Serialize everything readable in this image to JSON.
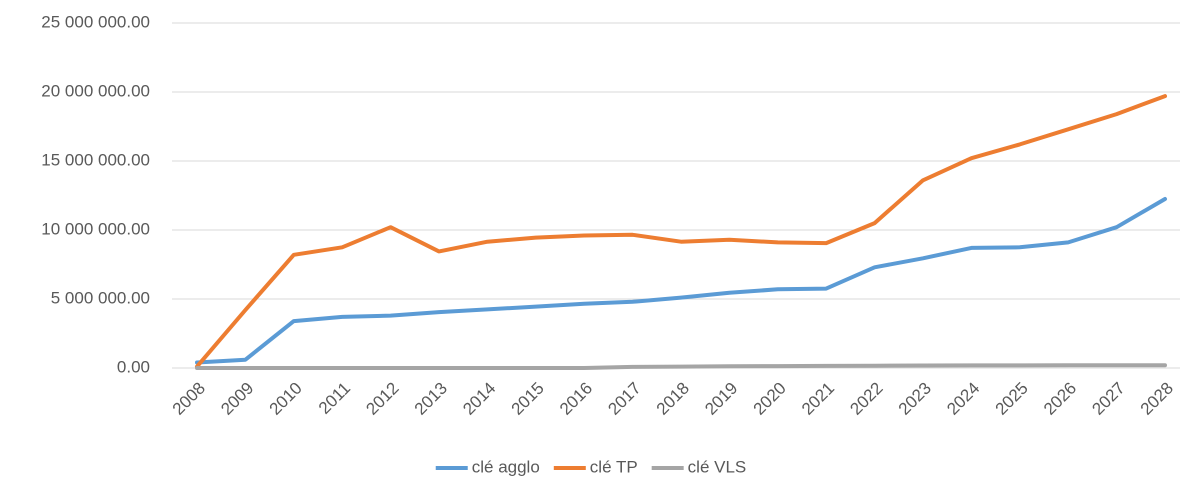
{
  "chart_data": {
    "type": "line",
    "categories": [
      "2008",
      "2009",
      "2010",
      "2011",
      "2012",
      "2013",
      "2014",
      "2015",
      "2016",
      "2017",
      "2018",
      "2019",
      "2020",
      "2021",
      "2022",
      "2023",
      "2024",
      "2025",
      "2026",
      "2027",
      "2028"
    ],
    "series": [
      {
        "name": "clé agglo",
        "color": "#5b9bd5",
        "values": [
          400000,
          600000,
          3400000,
          3700000,
          3800000,
          4050000,
          4250000,
          4450000,
          4650000,
          4800000,
          5100000,
          5450000,
          5700000,
          5750000,
          7300000,
          7950000,
          8700000,
          8750000,
          9100000,
          10200000,
          12250000
        ]
      },
      {
        "name": "clé TP",
        "color": "#ed7d31",
        "values": [
          100000,
          4200000,
          8200000,
          8750000,
          10200000,
          8450000,
          9150000,
          9450000,
          9600000,
          9650000,
          9150000,
          9300000,
          9100000,
          9050000,
          10500000,
          13600000,
          15200000,
          16200000,
          17300000,
          18400000,
          19700000
        ]
      },
      {
        "name": "clé VLS",
        "color": "#a5a5a5",
        "values": [
          0,
          0,
          0,
          0,
          0,
          0,
          0,
          0,
          0,
          80000,
          100000,
          120000,
          140000,
          150000,
          170000,
          180000,
          190000,
          190000,
          200000,
          200000,
          200000
        ]
      }
    ],
    "ylim": [
      0,
      25000000
    ],
    "yticks": [
      {
        "value": 0,
        "label": "0.00"
      },
      {
        "value": 5000000,
        "label": "5 000 000.00"
      },
      {
        "value": 10000000,
        "label": "10 000 000.00"
      },
      {
        "value": 15000000,
        "label": "15 000 000.00"
      },
      {
        "value": 20000000,
        "label": "20 000 000.00"
      },
      {
        "value": 25000000,
        "label": "25 000 000.00"
      }
    ],
    "grid": true,
    "legend": "bottom"
  }
}
